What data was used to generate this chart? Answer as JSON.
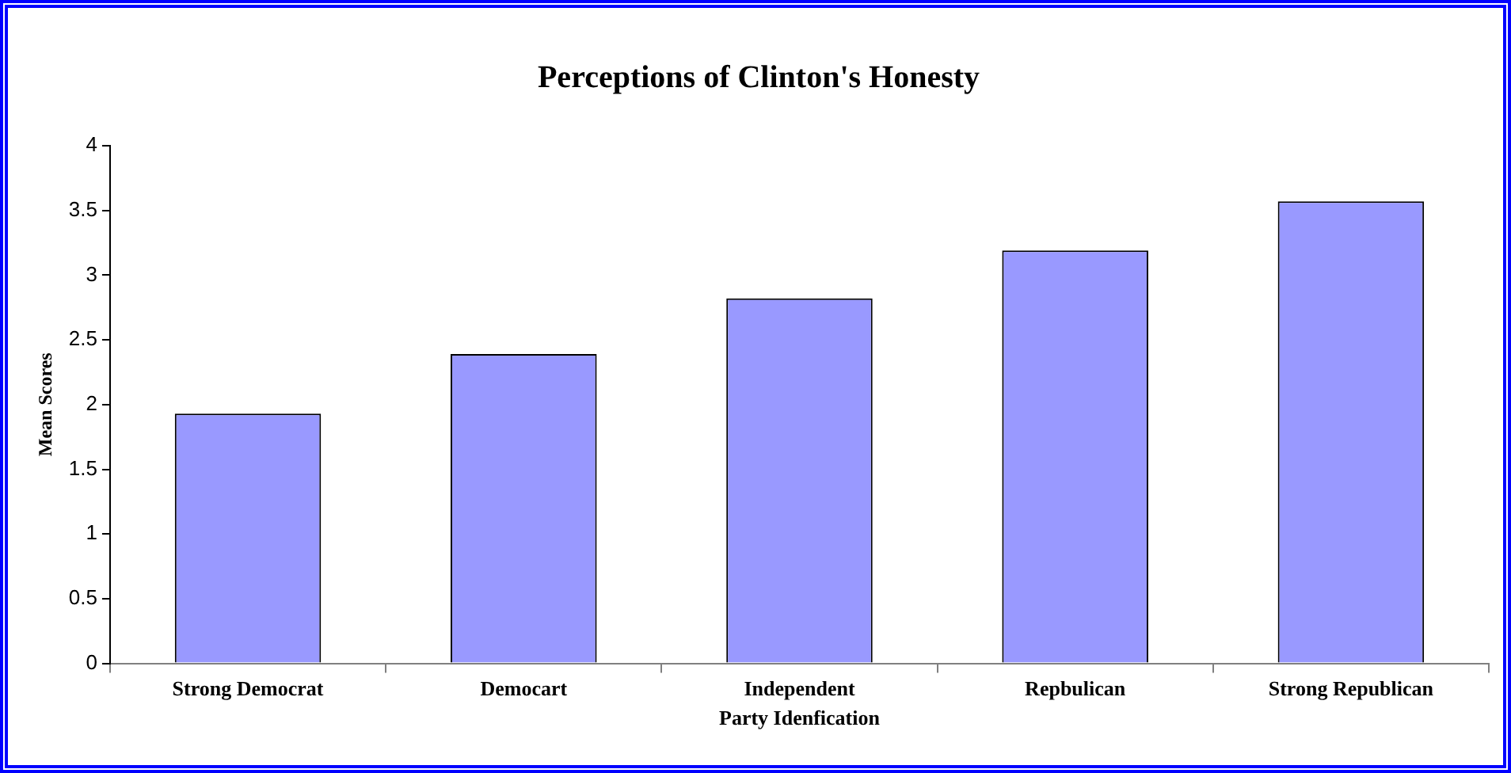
{
  "chart_data": {
    "type": "bar",
    "title": "Perceptions of Clinton's Honesty",
    "xlabel": "Party Idenfication",
    "ylabel": "Mean Scores",
    "categories": [
      "Strong Democrat",
      "Democart",
      "Independent",
      "Repbulican",
      "Strong Republican"
    ],
    "values": [
      1.93,
      2.39,
      2.82,
      3.19,
      3.57
    ],
    "color": "#9999ff",
    "ylim": [
      0,
      4
    ],
    "yticks": [
      0,
      0.5,
      1,
      1.5,
      2,
      2.5,
      3,
      3.5,
      4
    ],
    "grid": false,
    "legend": false
  }
}
